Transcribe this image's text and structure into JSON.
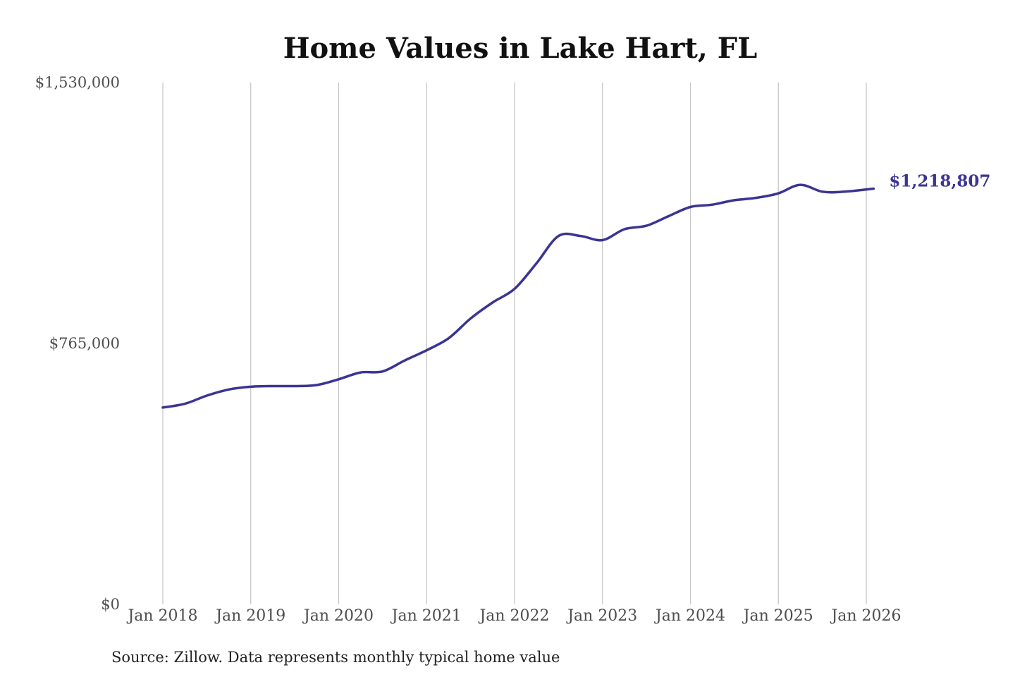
{
  "chart_data": {
    "type": "line",
    "title": "Home Values in Lake Hart, FL",
    "ylim": [
      0,
      1530000
    ],
    "yticks": [
      {
        "value": 0,
        "label": "$0"
      },
      {
        "value": 765000,
        "label": "$765,000"
      },
      {
        "value": 1530000,
        "label": "$1,530,000"
      }
    ],
    "xticks": [
      {
        "date": "2018-01",
        "label": "Jan 2018"
      },
      {
        "date": "2019-01",
        "label": "Jan 2019"
      },
      {
        "date": "2020-01",
        "label": "Jan 2020"
      },
      {
        "date": "2021-01",
        "label": "Jan 2021"
      },
      {
        "date": "2022-01",
        "label": "Jan 2022"
      },
      {
        "date": "2023-01",
        "label": "Jan 2023"
      },
      {
        "date": "2024-01",
        "label": "Jan 2024"
      },
      {
        "date": "2025-01",
        "label": "Jan 2025"
      },
      {
        "date": "2026-01",
        "label": "Jan 2026"
      }
    ],
    "grid": {
      "vertical": true,
      "horizontal": false
    },
    "series": [
      {
        "color": "#3a3593",
        "end_label": "$1,218,807",
        "points": [
          {
            "date": "2018-01",
            "value": 577000
          },
          {
            "date": "2018-04",
            "value": 588000
          },
          {
            "date": "2018-07",
            "value": 612000
          },
          {
            "date": "2018-10",
            "value": 630000
          },
          {
            "date": "2019-01",
            "value": 638000
          },
          {
            "date": "2019-04",
            "value": 640000
          },
          {
            "date": "2019-07",
            "value": 640000
          },
          {
            "date": "2019-10",
            "value": 643000
          },
          {
            "date": "2020-01",
            "value": 660000
          },
          {
            "date": "2020-04",
            "value": 680000
          },
          {
            "date": "2020-07",
            "value": 683000
          },
          {
            "date": "2020-10",
            "value": 715000
          },
          {
            "date": "2021-01",
            "value": 745000
          },
          {
            "date": "2021-04",
            "value": 780000
          },
          {
            "date": "2021-07",
            "value": 838000
          },
          {
            "date": "2021-10",
            "value": 885000
          },
          {
            "date": "2022-01",
            "value": 925000
          },
          {
            "date": "2022-04",
            "value": 1000000
          },
          {
            "date": "2022-07",
            "value": 1080000
          },
          {
            "date": "2022-10",
            "value": 1080000
          },
          {
            "date": "2023-01",
            "value": 1068000
          },
          {
            "date": "2023-04",
            "value": 1100000
          },
          {
            "date": "2023-07",
            "value": 1110000
          },
          {
            "date": "2023-10",
            "value": 1138000
          },
          {
            "date": "2024-01",
            "value": 1165000
          },
          {
            "date": "2024-04",
            "value": 1172000
          },
          {
            "date": "2024-07",
            "value": 1185000
          },
          {
            "date": "2024-10",
            "value": 1192000
          },
          {
            "date": "2025-01",
            "value": 1205000
          },
          {
            "date": "2025-04",
            "value": 1230000
          },
          {
            "date": "2025-07",
            "value": 1210000
          },
          {
            "date": "2025-10",
            "value": 1210000
          },
          {
            "date": "2026-02",
            "value": 1218807
          }
        ]
      }
    ]
  },
  "footer": {
    "source": "Source: Zillow. Data represents monthly typical home value"
  }
}
